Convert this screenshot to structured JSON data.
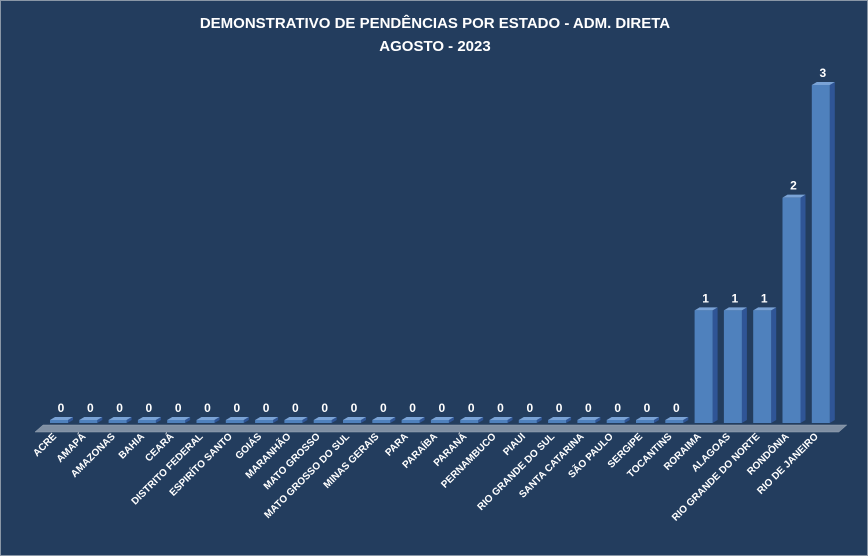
{
  "chart_data": {
    "type": "bar",
    "title": "DEMONSTRATIVO DE PENDÊNCIAS POR  ESTADO - ADM. DIRETA",
    "subtitle": "AGOSTO - 2023",
    "categories": [
      "ACRE",
      "AMAPÁ",
      "AMAZONAS",
      "BAHIA",
      "CEARÁ",
      "DISTRITO FEDERAL",
      "ESPIRÍTO SANTO",
      "GOIÁS",
      "MARANHÃO",
      "MATO GROSSO",
      "MATO GROSSO  DO SUL",
      "MINAS GERAIS",
      "PARA",
      "PARAÍBA",
      "PARANÁ",
      "PERNAMBUCO",
      "PIAUI",
      "RIO GRANDE DO SUL",
      "SANTA CATARINA",
      "SÃO PAULO",
      "SERGIPE",
      "TOCANTINS",
      "RORAIMA",
      "ALAGOAS",
      "RIO GRANDE DO NORTE",
      "RONDÔNIA",
      "RIO DE JANEIRO"
    ],
    "values": [
      0,
      0,
      0,
      0,
      0,
      0,
      0,
      0,
      0,
      0,
      0,
      0,
      0,
      0,
      0,
      0,
      0,
      0,
      0,
      0,
      0,
      0,
      1,
      1,
      1,
      2,
      3
    ],
    "ylim": [
      0,
      3
    ],
    "grid": false,
    "legend": "none",
    "colors": {
      "background": "#233d5e",
      "bar": "#4f81bd",
      "bar_top": "#7aa3d6",
      "bar_side": "#2f5596",
      "text": "#ffffff"
    }
  }
}
